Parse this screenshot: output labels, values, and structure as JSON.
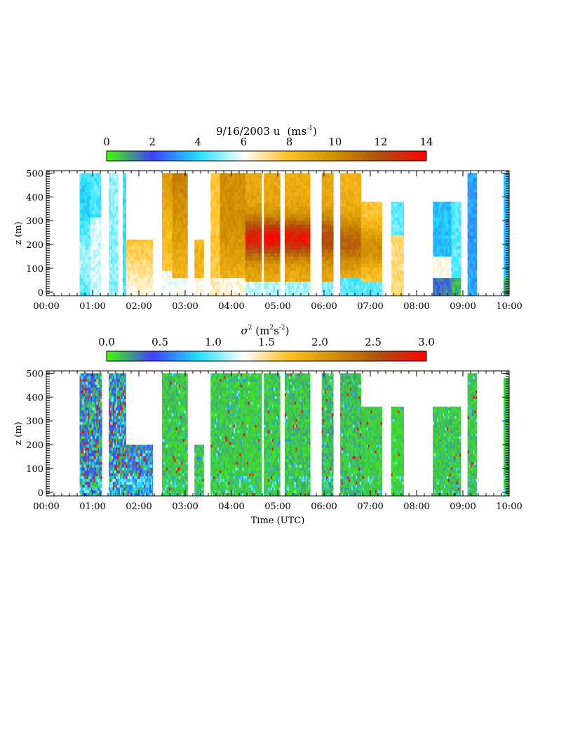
{
  "chart_data": [
    {
      "type": "heatmap",
      "title": "9/16/2003   u",
      "units": "(ms",
      "units_exp": "-1",
      "units_close": ")",
      "colorbar": {
        "ticks": [
          "0",
          "2",
          "4",
          "6",
          "8",
          "10",
          "12",
          "14"
        ],
        "range": [
          0,
          14
        ],
        "colors": [
          "#40ff00",
          "#4040ff",
          "#20e0ff",
          "#ffffff",
          "#ffc020",
          "#d09000",
          "#b05010",
          "#ff0000"
        ]
      },
      "ylabel": "z (m)",
      "yticks": [
        "0",
        "100",
        "200",
        "300",
        "400",
        "500"
      ],
      "xticks": [
        "00:00",
        "01:00",
        "02:00",
        "03:00",
        "04:00",
        "05:00",
        "06:00",
        "07:00",
        "08:00",
        "09:00",
        "10:00"
      ],
      "xrange_hours": [
        0,
        10
      ],
      "yrange_m": [
        -15,
        510
      ]
    },
    {
      "type": "heatmap",
      "title": "σ",
      "title_exp": "2",
      "units": " (m",
      "units_exp1": "2",
      "units_mid": "s",
      "units_exp2": "-2",
      "units_close": ")",
      "colorbar": {
        "ticks": [
          "0.0",
          "0.5",
          "1.0",
          "1.5",
          "2.0",
          "2.5",
          "3.0"
        ],
        "range": [
          0,
          3
        ],
        "colors": [
          "#40ff00",
          "#4040ff",
          "#20e0ff",
          "#ffffff",
          "#ffc020",
          "#d09000",
          "#b05010",
          "#ff0000"
        ]
      },
      "ylabel": "z (m)",
      "yticks": [
        "0",
        "100",
        "200",
        "300",
        "400",
        "500"
      ],
      "xticks": [
        "00:00",
        "01:00",
        "02:00",
        "03:00",
        "04:00",
        "05:00",
        "06:00",
        "07:00",
        "08:00",
        "09:00",
        "10:00"
      ],
      "xlabel": "Time (UTC)",
      "xrange_hours": [
        0,
        10
      ],
      "yrange_m": [
        -15,
        510
      ]
    }
  ]
}
